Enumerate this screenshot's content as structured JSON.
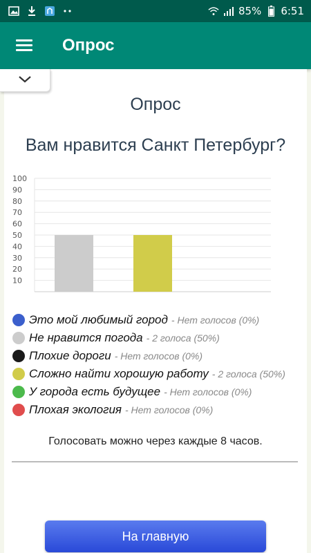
{
  "status_bar": {
    "battery": "85%",
    "time": "6:51",
    "left_icons": [
      "image-icon",
      "download-icon",
      "notification-icon",
      "more-dots-icon"
    ]
  },
  "app_bar": {
    "title": "Опрос"
  },
  "page": {
    "title": "Опрос",
    "question": "Вам нравится Санкт Петербург?",
    "note": "Голосовать можно через каждые 8 часов.",
    "home_button": "На главную"
  },
  "legend": [
    {
      "label": "Это мой любимый город",
      "votes": "- Нет голосов (0%)",
      "color": "#3b5fcc"
    },
    {
      "label": "Не нравится погода",
      "votes": "- 2 голоса (50%)",
      "color": "#cccccc"
    },
    {
      "label": "Плохие дороги",
      "votes": "- Нет голосов (0%)",
      "color": "#1a1a1a"
    },
    {
      "label": "Сложно найти хорошую работу",
      "votes": "- 2 голоса (50%)",
      "color": "#d1cc4a"
    },
    {
      "label": "У города есть будущее",
      "votes": "- Нет голосов (0%)",
      "color": "#4cba4c"
    },
    {
      "label": "Плохая экология",
      "votes": "- Нет голосов (0%)",
      "color": "#e04d4d"
    }
  ],
  "chart_data": {
    "type": "bar",
    "categories": [
      "Это мой любимый город",
      "Не нравится погода",
      "Плохие дороги",
      "Сложно найти хорошую работу",
      "У города есть будущее",
      "Плохая экология"
    ],
    "values": [
      0,
      50,
      0,
      50,
      0,
      0
    ],
    "colors": [
      "#3b5fcc",
      "#cccccc",
      "#1a1a1a",
      "#d1cc4a",
      "#4cba4c",
      "#e04d4d"
    ],
    "ylim": [
      0,
      100
    ],
    "yticks": [
      10,
      20,
      30,
      40,
      50,
      60,
      70,
      80,
      90,
      100
    ],
    "grid": true
  }
}
